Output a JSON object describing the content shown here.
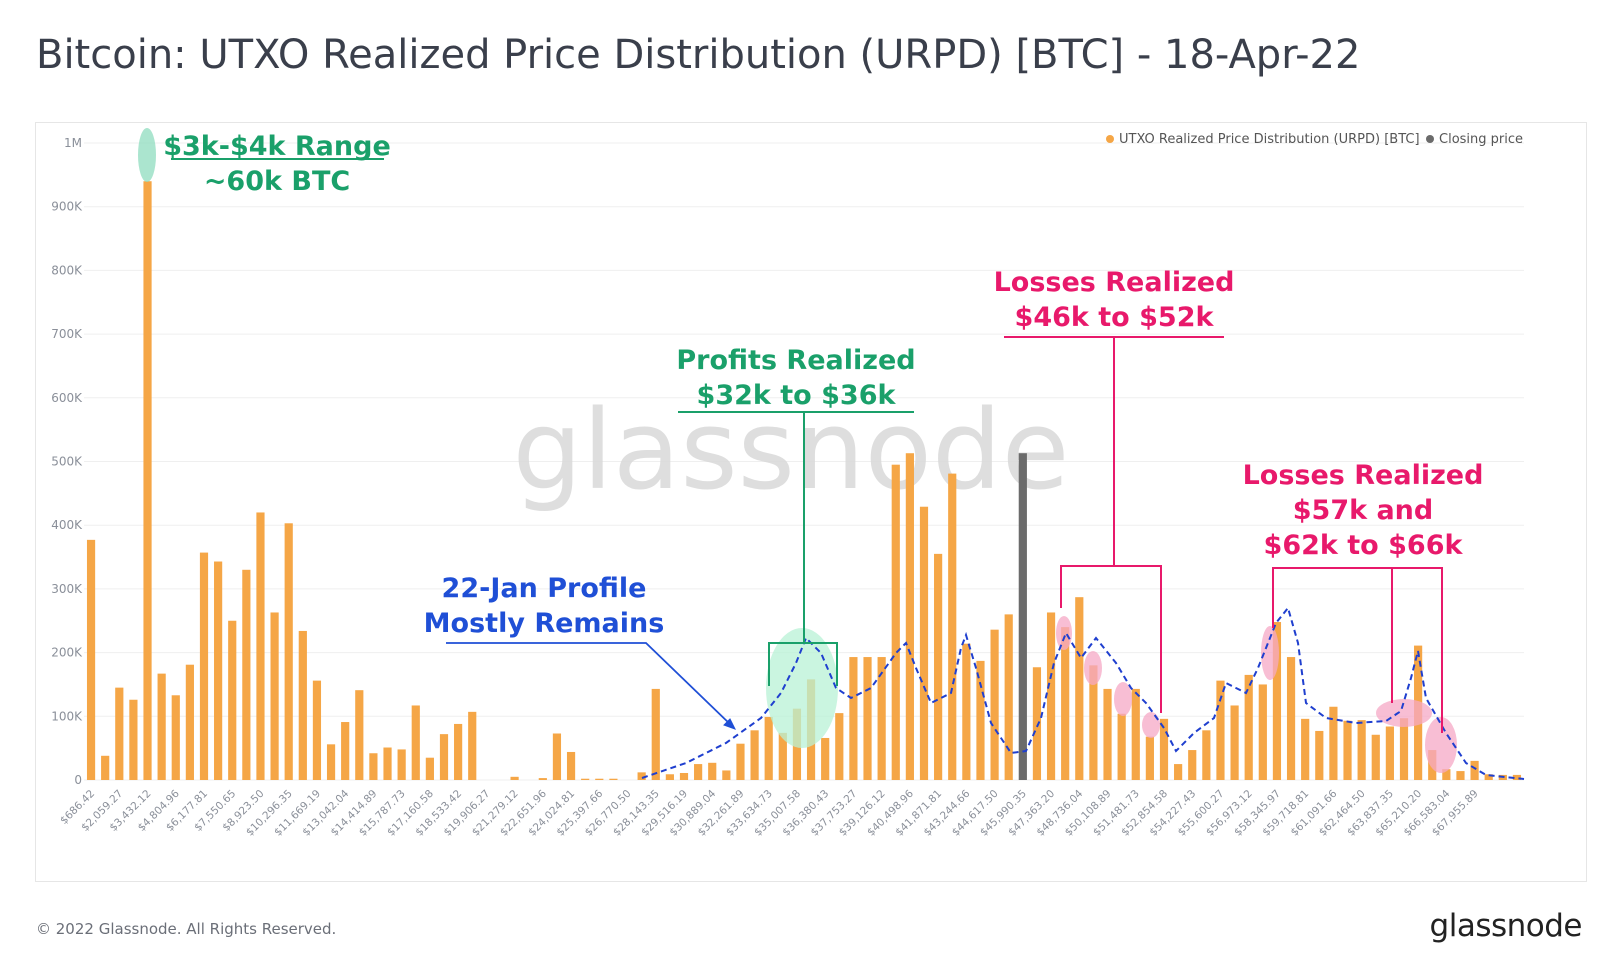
{
  "title": "Bitcoin: UTXO Realized Price Distribution (URPD) [BTC] - 18-Apr-22",
  "footer": "© 2022 Glassnode. All Rights Reserved.",
  "brand": "glassnode",
  "watermark": "glassnode",
  "colors": {
    "bar": "#f5a646",
    "closing": "#6b6b6b",
    "trend": "#1f3fcf",
    "green": "#1aa06a",
    "pink": "#e8196b",
    "blue": "#1f4fd6",
    "grid": "#efefef"
  },
  "legend": [
    {
      "label": "UTXO Realized Price Distribution (URPD) [BTC]",
      "color": "#f5a646"
    },
    {
      "label": "Closing price",
      "color": "#6b6b6b"
    }
  ],
  "annotations": [
    {
      "id": "range3k",
      "lines": [
        "$3k-$4k Range",
        "~60k BTC"
      ],
      "color": "#1aa06a"
    },
    {
      "id": "profits",
      "lines": [
        "Profits Realized",
        "$32k to $36k"
      ],
      "color": "#1aa06a"
    },
    {
      "id": "jan",
      "lines": [
        "22-Jan Profile",
        "Mostly Remains"
      ],
      "color": "#1f4fd6"
    },
    {
      "id": "loss1",
      "lines": [
        "Losses Realized",
        "$46k to $52k"
      ],
      "color": "#e8196b"
    },
    {
      "id": "loss2",
      "lines": [
        "Losses Realized",
        "$57k and",
        "$62k to $66k"
      ],
      "color": "#e8196b"
    }
  ],
  "chart_data": {
    "type": "bar",
    "title": "Bitcoin: UTXO Realized Price Distribution (URPD) [BTC] - 18-Apr-22",
    "ylim": [
      0,
      1000000
    ],
    "y_ticks": [
      "0",
      "100K",
      "200K",
      "300K",
      "400K",
      "500K",
      "600K",
      "700K",
      "800K",
      "900K",
      "1M"
    ],
    "grid": true,
    "legend_position": "top-right",
    "x_tick_labels": [
      "$686.42",
      "$2,059.27",
      "$3,432.12",
      "$4,804.96",
      "$6,177.81",
      "$7,550.65",
      "$8,923.50",
      "$10,296.35",
      "$11,669.19",
      "$13,042.04",
      "$14,414.89",
      "$15,787.73",
      "$17,160.58",
      "$18,533.42",
      "$19,906.27",
      "$21,279.12",
      "$22,651.96",
      "$24,024.81",
      "$25,397.66",
      "$26,770.50",
      "$28,143.35",
      "$29,516.19",
      "$30,889.04",
      "$32,261.89",
      "$33,634.73",
      "$35,007.58",
      "$36,380.43",
      "$37,753.27",
      "$39,126.12",
      "$40,498.96",
      "$41,871.81",
      "$43,244.66",
      "$44,617.50",
      "$45,990.35",
      "$47,363.20",
      "$48,736.04",
      "$50,108.89",
      "$51,481.73",
      "$52,854.58",
      "$54,227.43",
      "$55,600.27",
      "$56,973.12",
      "$58,345.97",
      "$59,718.81",
      "$61,091.66",
      "$62,464.50",
      "$63,837.35",
      "$65,210.20",
      "$66,583.04",
      "$67,955.89"
    ],
    "closing_bin_index": 66,
    "series": [
      {
        "name": "UTXO Realized Price Distribution (URPD) [BTC]",
        "values": [
          377000,
          38000,
          145000,
          126000,
          940000,
          167000,
          133000,
          181000,
          357000,
          343000,
          250000,
          330000,
          420000,
          263000,
          403000,
          234000,
          156000,
          56000,
          91000,
          141000,
          42000,
          51000,
          48000,
          117000,
          35000,
          72000,
          88000,
          107000,
          0,
          0,
          5000,
          0,
          3000,
          73000,
          44000,
          2000,
          2000,
          2000,
          0,
          12000,
          143000,
          9000,
          11000,
          25000,
          27000,
          15000,
          57000,
          78000,
          99000,
          74000,
          112000,
          158000,
          66000,
          105000,
          193000,
          193000,
          193000,
          495000,
          513000,
          429000,
          355000,
          481000,
          214000,
          187000,
          236000,
          260000,
          92000,
          177000,
          263000,
          240000,
          287000,
          180000,
          143000,
          104000,
          143000,
          68000,
          96000,
          25000,
          47000,
          78000,
          156000,
          117000,
          165000,
          150000,
          248000,
          193000,
          96000,
          77000,
          115000,
          93000,
          94000,
          71000,
          84000,
          97000,
          211000,
          47000,
          17000,
          14000,
          30000,
          9000,
          8000,
          8000
        ]
      },
      {
        "name": "Closing price",
        "values": [
          513000
        ]
      }
    ]
  }
}
